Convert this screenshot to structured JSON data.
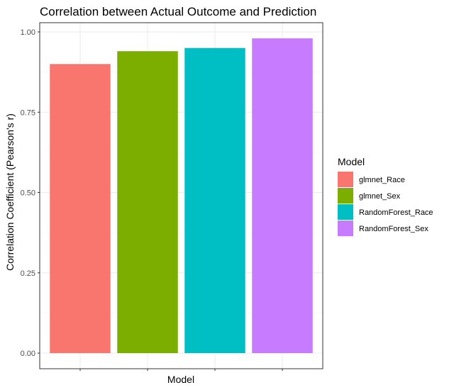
{
  "chart_data": {
    "type": "bar",
    "title": "Correlation between Actual Outcome and Prediction",
    "xlabel": "Model",
    "ylabel": "Correlation Coefficient (Pearson's r)",
    "categories": [
      "glmnet_Race",
      "glmnet_Sex",
      "RandomForest_Race",
      "RandomForest_Sex"
    ],
    "values": [
      0.9,
      0.94,
      0.95,
      0.98
    ],
    "colors": [
      "#F8766D",
      "#7CAE00",
      "#00BFC4",
      "#C77CFF"
    ],
    "ylim": [
      0,
      1.0
    ],
    "yticks": [
      "0.00",
      "0.25",
      "0.50",
      "0.75",
      "1.00"
    ],
    "grid": true,
    "legend": {
      "title": "Model",
      "placement": "right",
      "entries": [
        "glmnet_Race",
        "glmnet_Sex",
        "RandomForest_Race",
        "RandomForest_Sex"
      ]
    }
  }
}
